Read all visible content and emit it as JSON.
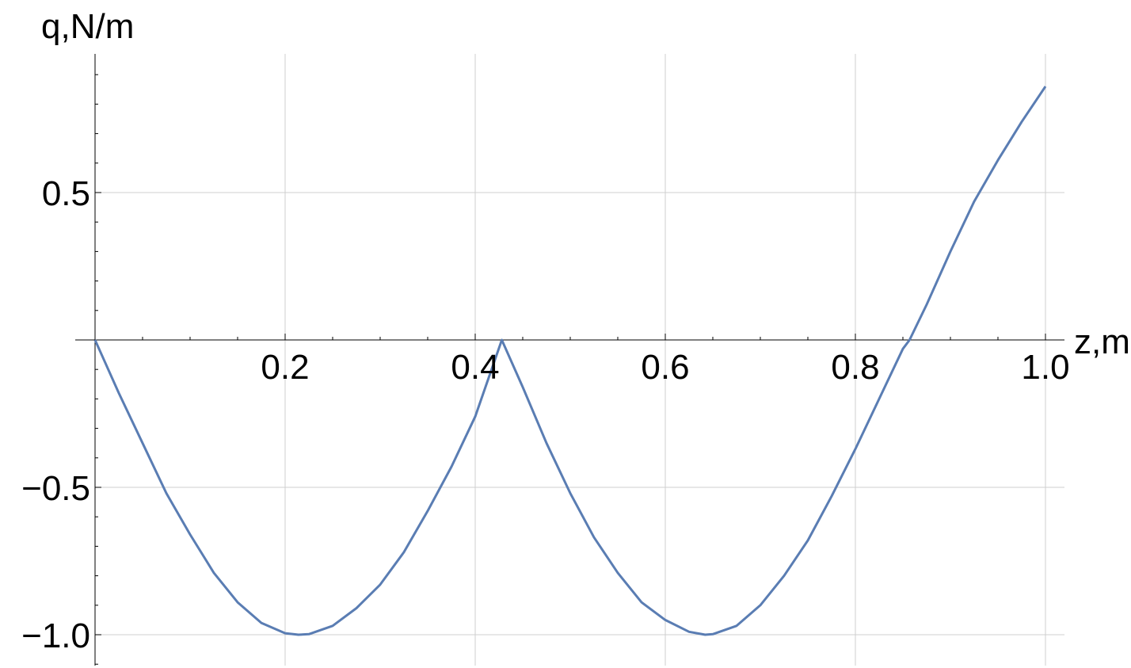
{
  "chart_data": {
    "type": "line",
    "title": "",
    "xlabel": "z,m",
    "ylabel": "q,N/m",
    "xlim": [
      0,
      1.0
    ],
    "ylim": [
      -1.1,
      0.97
    ],
    "grid": true,
    "legend": "none",
    "x_ticks": [
      {
        "value": 0.2,
        "label": "0.2"
      },
      {
        "value": 0.4,
        "label": "0.4"
      },
      {
        "value": 0.6,
        "label": "0.6"
      },
      {
        "value": 0.8,
        "label": "0.8"
      },
      {
        "value": 1.0,
        "label": "1.0"
      }
    ],
    "y_ticks": [
      {
        "value": 0.5,
        "label": "0.5"
      },
      {
        "value": -0.5,
        "label": "−0.5"
      },
      {
        "value": -1.0,
        "label": "−1.0"
      }
    ],
    "series": [
      {
        "color": "#5a7db3",
        "x": [
          0,
          0.025,
          0.05,
          0.075,
          0.1,
          0.125,
          0.15,
          0.175,
          0.2,
          0.214,
          0.225,
          0.25,
          0.275,
          0.3,
          0.325,
          0.35,
          0.375,
          0.4,
          0.428,
          0.45,
          0.475,
          0.5,
          0.525,
          0.55,
          0.575,
          0.6,
          0.625,
          0.642,
          0.65,
          0.675,
          0.7,
          0.725,
          0.75,
          0.775,
          0.8,
          0.825,
          0.85,
          0.857,
          0.875,
          0.9,
          0.925,
          0.95,
          0.975,
          1.0
        ],
        "y": [
          0,
          -0.18,
          -0.35,
          -0.52,
          -0.66,
          -0.79,
          -0.89,
          -0.96,
          -0.995,
          -1.0,
          -0.998,
          -0.97,
          -0.91,
          -0.83,
          -0.72,
          -0.58,
          -0.43,
          -0.26,
          0,
          -0.16,
          -0.35,
          -0.52,
          -0.67,
          -0.79,
          -0.89,
          -0.95,
          -0.99,
          -1.0,
          -0.998,
          -0.97,
          -0.9,
          -0.8,
          -0.68,
          -0.53,
          -0.37,
          -0.2,
          -0.03,
          0,
          0.12,
          0.3,
          0.47,
          0.61,
          0.74,
          0.86
        ]
      }
    ]
  }
}
